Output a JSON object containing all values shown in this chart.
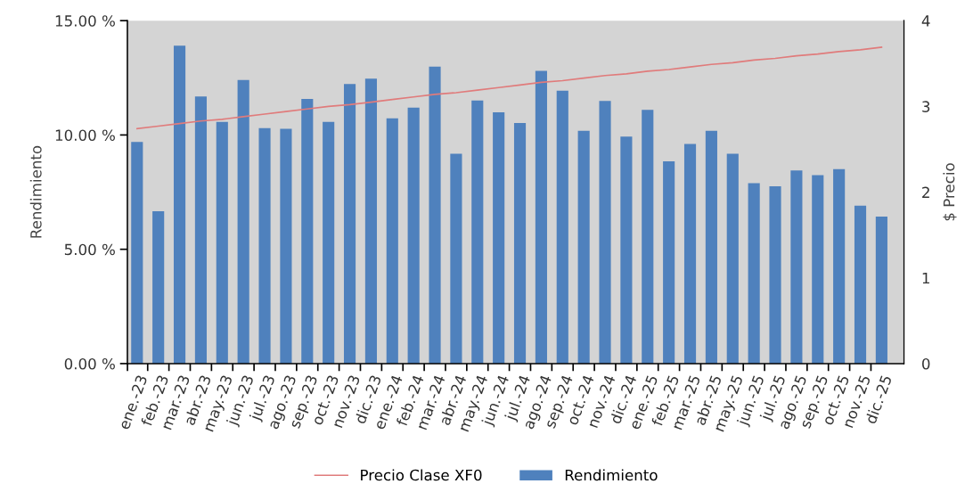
{
  "chart_data": {
    "type": "bar",
    "ylabel": "Rendimiento",
    "y2label": "$ Precio",
    "categories": [
      "ene.-23",
      "feb.-23",
      "mar.-23",
      "abr.-23",
      "may.-23",
      "jun.-23",
      "jul.-23",
      "ago.-23",
      "sep.-23",
      "oct.-23",
      "nov.-23",
      "dic.-23",
      "ene.-24",
      "feb.-24",
      "mar.-24",
      "abr.-24",
      "may.-24",
      "jun.-24",
      "jul.-24",
      "ago.-24",
      "sep.-24",
      "oct.-24",
      "nov.-24",
      "dic.-24",
      "ene.-25",
      "feb.-25",
      "mar.-25",
      "abr.-25",
      "may.-25",
      "jun.-25",
      "jul.-25",
      "ago.-25",
      "sep.-25",
      "oct.-25",
      "nov.-25",
      "dic.-25"
    ],
    "series": [
      {
        "name": "Precio Clase XF0",
        "type": "line",
        "axis": "y2",
        "color": "#e07b7b",
        "values": [
          2.74,
          2.77,
          2.8,
          2.83,
          2.85,
          2.88,
          2.91,
          2.94,
          2.97,
          3.0,
          3.02,
          3.05,
          3.08,
          3.11,
          3.14,
          3.16,
          3.19,
          3.22,
          3.25,
          3.28,
          3.3,
          3.33,
          3.36,
          3.38,
          3.41,
          3.43,
          3.46,
          3.49,
          3.51,
          3.54,
          3.56,
          3.59,
          3.61,
          3.64,
          3.66,
          3.69
        ]
      },
      {
        "name": "Rendimiento",
        "color": "#4f81bd",
        "values": [
          9.7,
          6.66,
          13.91,
          11.68,
          10.57,
          12.4,
          10.3,
          10.27,
          11.58,
          10.57,
          12.23,
          12.46,
          10.73,
          11.2,
          12.99,
          9.18,
          11.51,
          10.99,
          10.52,
          12.8,
          11.94,
          10.18,
          11.49,
          9.93,
          11.1,
          8.85,
          9.61,
          10.18,
          9.18,
          7.89,
          7.76,
          8.45,
          8.24,
          8.51,
          6.91,
          6.43
        ]
      }
    ],
    "ylim": [
      0,
      15
    ],
    "yticks": [
      {
        "value": 0,
        "label": "0.00 %"
      },
      {
        "value": 5,
        "label": "5.00 %"
      },
      {
        "value": 10,
        "label": "10.00 %"
      },
      {
        "value": 15,
        "label": "15.00 %"
      }
    ],
    "y2lim": [
      0,
      4
    ],
    "y2ticks": [
      0,
      1,
      2,
      3,
      4
    ],
    "legend": "bottom",
    "grid": false
  }
}
